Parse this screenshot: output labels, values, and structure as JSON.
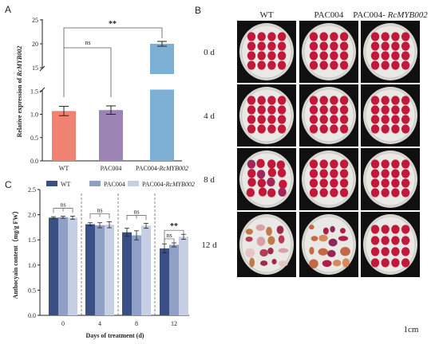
{
  "panels": {
    "a": "A",
    "b": "B",
    "c": "C"
  },
  "chart_data": [
    {
      "type": "bar",
      "panel": "A",
      "categories": [
        "WT",
        "PAC004",
        "PAC004-RcMYB002"
      ],
      "category_parts": [
        [
          "WT",
          ""
        ],
        [
          "PAC004",
          ""
        ],
        [
          "PAC004-",
          "RcMYB002"
        ]
      ],
      "values": [
        1.07,
        1.09,
        20.0
      ],
      "errors": [
        0.1,
        0.09,
        0.5
      ],
      "colors": [
        "#f08272",
        "#9b83b4",
        "#7eb0d6"
      ],
      "ylabel_prefix": "Relative expression of ",
      "ylabel_gene": "RcMYB002",
      "yticks_lower": [
        "0.0",
        "0.5",
        "1.0",
        "1.5"
      ],
      "yticks_upper": [
        "15",
        "20",
        "25"
      ],
      "axis_break": true,
      "significance": [
        {
          "between": [
            "WT",
            "PAC004"
          ],
          "label": "ns"
        },
        {
          "between": [
            "WT",
            "PAC004-RcMYB002"
          ],
          "label": "**"
        }
      ]
    },
    {
      "type": "bar",
      "panel": "C",
      "categories": [
        "0",
        "4",
        "8",
        "12"
      ],
      "xlabel": "Days of treatment (d)",
      "ylabel": "Anthocyain content（mg/g FW）",
      "ylim": [
        0,
        2.5
      ],
      "yticks": [
        "0.0",
        "0.5",
        "1.0",
        "1.5",
        "2.0",
        "2.5"
      ],
      "series": [
        {
          "name": "WT",
          "name_parts": [
            "WT",
            ""
          ],
          "color": "#3a4f86",
          "values": [
            1.94,
            1.81,
            1.65,
            1.33
          ],
          "errors": [
            0.02,
            0.03,
            0.08,
            0.09
          ]
        },
        {
          "name": "PAC004",
          "name_parts": [
            "PAC004",
            ""
          ],
          "color": "#8f9fc6",
          "values": [
            1.95,
            1.79,
            1.59,
            1.4
          ],
          "errors": [
            0.02,
            0.05,
            0.09,
            0.04
          ]
        },
        {
          "name": "PAC004-RcMYB002",
          "name_parts": [
            "PAC004-",
            "RcMYB002"
          ],
          "color": "#c6cfe4",
          "values": [
            1.94,
            1.8,
            1.78,
            1.56
          ],
          "errors": [
            0.03,
            0.06,
            0.05,
            0.05
          ]
        }
      ],
      "significance": [
        {
          "group": "0",
          "label": "ns"
        },
        {
          "group": "4",
          "label": "ns"
        },
        {
          "group": "8",
          "label": "ns"
        },
        {
          "group": "12",
          "label": "ns",
          "between": [
            "WT",
            "PAC004"
          ]
        },
        {
          "group": "12",
          "label": "**",
          "between": [
            "WT",
            "PAC004-RcMYB002"
          ]
        }
      ]
    }
  ],
  "photos": {
    "columns": [
      [
        "WT",
        ""
      ],
      [
        "PAC004",
        ""
      ],
      [
        "PAC004- ",
        "RcMYB002"
      ]
    ],
    "rows": [
      "0 d",
      "4 d",
      "8 d",
      "12 d"
    ],
    "scale_bar": "1cm",
    "petal_color": "#c2183a"
  }
}
